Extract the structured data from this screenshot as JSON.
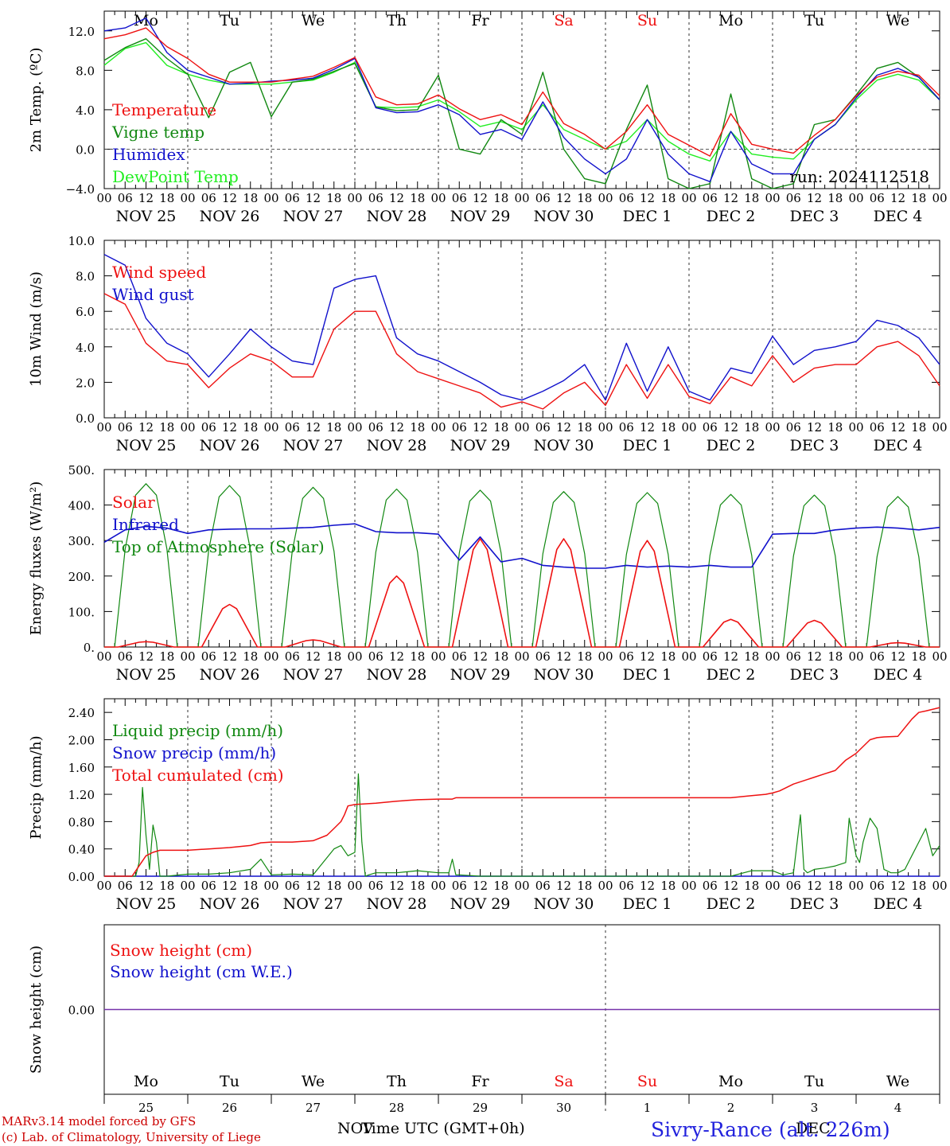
{
  "footer": {
    "model_line": "MARv3.14 model forced by GFS",
    "lab_line": "(c) Lab. of Climatology, University of Liege",
    "xaxis_title": "Time UTC (GMT+0h)",
    "nov_label": "NOV",
    "dec_label": "DEC",
    "station": "Sivry-Rance (alt. 226m)"
  },
  "colors": {
    "red": "#ee1111",
    "green": "#118811",
    "blue": "#1111cc",
    "lightgreen": "#22ee22",
    "purple": "#7733aa"
  },
  "days_top": [
    "Mo",
    "Tu",
    "We",
    "Th",
    "Fr",
    "Sa",
    "Su",
    "Mo",
    "Tu",
    "We"
  ],
  "weekend_days": [
    5,
    6
  ],
  "dates": [
    "NOV 25",
    "NOV 26",
    "NOV 27",
    "NOV 28",
    "NOV 29",
    "NOV 30",
    "DEC  1",
    "DEC  2",
    "DEC  3",
    "DEC  4"
  ],
  "hour_ticks": [
    "00",
    "06",
    "12",
    "18"
  ],
  "bottom_day_numbers": [
    "25",
    "26",
    "27",
    "28",
    "29",
    "30",
    "1",
    "2",
    "3",
    "4"
  ],
  "chart_data": [
    {
      "type": "line",
      "ylabel": "2m Temp. (ºC)",
      "ylim": [
        -4,
        14
      ],
      "yticks": [
        "12.0",
        "8.0",
        "4.0",
        "0.0",
        "−4.0"
      ],
      "ytick_values": [
        12,
        8,
        4,
        0,
        -4
      ],
      "ref_line": 0,
      "run_label": "run: 2024112518",
      "x_hours": [
        0,
        6,
        12,
        18,
        24,
        30,
        36,
        42,
        48,
        54,
        60,
        66,
        72,
        78,
        84,
        90,
        96,
        102,
        108,
        114,
        120,
        126,
        132,
        138,
        144,
        150,
        156,
        162,
        168,
        174,
        180,
        186,
        192,
        198,
        204,
        210,
        216,
        222,
        228,
        234,
        240
      ],
      "series": [
        {
          "name": "Temperature",
          "color": "red",
          "values": [
            11.2,
            11.6,
            12.3,
            10.4,
            9.2,
            7.6,
            6.8,
            6.8,
            6.8,
            7.1,
            7.4,
            8.3,
            9.3,
            5.3,
            4.5,
            4.6,
            5.5,
            4.1,
            3.0,
            3.5,
            2.5,
            5.8,
            2.6,
            1.5,
            0.0,
            1.8,
            4.5,
            1.5,
            0.4,
            -0.7,
            3.6,
            0.5,
            0.0,
            -0.4,
            1.4,
            3.0,
            5.4,
            7.3,
            7.9,
            7.5,
            5.4
          ]
        },
        {
          "name": "Vigne temp",
          "color": "green",
          "values": [
            9.0,
            10.3,
            11.2,
            9.2,
            7.6,
            3.2,
            7.8,
            8.8,
            3.3,
            6.8,
            7.1,
            7.9,
            8.7,
            4.3,
            3.9,
            4.0,
            7.5,
            0.0,
            -0.5,
            3.0,
            1.5,
            7.8,
            0.0,
            -3.0,
            -3.5,
            2.0,
            6.5,
            -3.0,
            -4.0,
            -3.5,
            5.6,
            -3.0,
            -4.0,
            -3.5,
            2.5,
            3.0,
            5.5,
            8.2,
            8.8,
            7.3,
            5.0
          ]
        },
        {
          "name": "Humidex",
          "color": "blue",
          "values": [
            12.0,
            12.3,
            13.3,
            9.8,
            8.0,
            7.3,
            6.6,
            6.7,
            6.9,
            7.0,
            7.2,
            8.1,
            9.2,
            4.2,
            3.7,
            3.8,
            4.5,
            3.5,
            1.5,
            2.0,
            1.0,
            4.8,
            1.2,
            -1.0,
            -2.5,
            -1.0,
            3.0,
            -0.5,
            -2.5,
            -3.3,
            1.8,
            -1.5,
            -2.5,
            -2.5,
            1.0,
            2.5,
            5.2,
            7.5,
            8.2,
            7.3,
            5.0
          ]
        },
        {
          "name": "DewPoint Temp",
          "color": "lightgreen",
          "values": [
            8.5,
            10.2,
            10.8,
            8.5,
            7.6,
            7.0,
            6.6,
            6.6,
            6.6,
            6.8,
            7.0,
            7.8,
            8.8,
            4.3,
            4.2,
            4.3,
            5.0,
            3.8,
            2.3,
            2.8,
            2.0,
            4.5,
            2.0,
            1.0,
            0.0,
            0.8,
            3.0,
            0.8,
            -0.5,
            -1.2,
            1.8,
            -0.5,
            -0.8,
            -1.0,
            1.0,
            2.5,
            5.0,
            7.0,
            7.6,
            7.0,
            5.0
          ]
        }
      ]
    },
    {
      "type": "line",
      "ylabel": "10m Wind (m/s)",
      "ylim": [
        0,
        10
      ],
      "yticks": [
        "10.0",
        "8.0",
        "6.0",
        "4.0",
        "2.0",
        "0.0"
      ],
      "ytick_values": [
        10,
        8,
        6,
        4,
        2,
        0
      ],
      "ref_line": 5,
      "x_hours": [
        0,
        6,
        12,
        18,
        24,
        30,
        36,
        42,
        48,
        54,
        60,
        66,
        72,
        78,
        84,
        90,
        96,
        102,
        108,
        114,
        120,
        126,
        132,
        138,
        144,
        150,
        156,
        162,
        168,
        174,
        180,
        186,
        192,
        198,
        204,
        210,
        216,
        222,
        228,
        234,
        240
      ],
      "series": [
        {
          "name": "Wind speed",
          "color": "red",
          "values": [
            7.0,
            6.4,
            4.2,
            3.2,
            3.0,
            1.7,
            2.8,
            3.6,
            3.2,
            2.3,
            2.3,
            5.0,
            6.0,
            6.0,
            3.6,
            2.6,
            2.2,
            1.8,
            1.4,
            0.6,
            0.9,
            0.5,
            1.4,
            2.0,
            0.7,
            3.0,
            1.1,
            3.0,
            1.2,
            0.8,
            2.3,
            1.8,
            3.5,
            2.0,
            2.8,
            3.0,
            3.0,
            4.0,
            4.3,
            3.5,
            1.8
          ]
        },
        {
          "name": "Wind gust",
          "color": "blue",
          "values": [
            9.2,
            8.6,
            5.6,
            4.2,
            3.6,
            2.3,
            3.6,
            5.0,
            4.0,
            3.2,
            3.0,
            7.3,
            7.8,
            8.0,
            4.5,
            3.6,
            3.2,
            2.6,
            2.0,
            1.3,
            1.0,
            1.5,
            2.1,
            3.0,
            1.0,
            4.2,
            1.5,
            4.0,
            1.5,
            1.0,
            2.8,
            2.5,
            4.6,
            3.0,
            3.8,
            4.0,
            4.3,
            5.5,
            5.2,
            4.5,
            3.0
          ]
        }
      ]
    },
    {
      "type": "line",
      "ylabel": "Energy fluxes (W/m²)",
      "ylim": [
        0,
        500
      ],
      "yticks": [
        "500.",
        "400.",
        "300.",
        "200.",
        "100.",
        "0."
      ],
      "ytick_values": [
        500,
        400,
        300,
        200,
        100,
        0
      ],
      "peak_hours": [
        12,
        36,
        60,
        84,
        108,
        132,
        156,
        180,
        204,
        228
      ],
      "toa_peaks": [
        460,
        455,
        450,
        445,
        442,
        438,
        435,
        430,
        428,
        424
      ],
      "solar_peaks": [
        15,
        120,
        20,
        200,
        305,
        305,
        300,
        78,
        75,
        12
      ],
      "infrared": {
        "x_hours": [
          0,
          6,
          12,
          18,
          24,
          30,
          36,
          42,
          48,
          54,
          60,
          66,
          72,
          78,
          84,
          90,
          96,
          102,
          108,
          114,
          120,
          126,
          132,
          138,
          144,
          150,
          156,
          162,
          168,
          174,
          180,
          186,
          192,
          198,
          204,
          210,
          216,
          222,
          228,
          234,
          240
        ],
        "values": [
          295,
          330,
          340,
          335,
          320,
          330,
          332,
          333,
          333,
          335,
          337,
          343,
          347,
          325,
          322,
          322,
          318,
          245,
          310,
          240,
          250,
          230,
          225,
          222,
          222,
          230,
          225,
          228,
          225,
          230,
          225,
          225,
          318,
          320,
          320,
          330,
          335,
          338,
          335,
          330,
          337
        ]
      },
      "series": [
        {
          "name": "Solar",
          "color": "red"
        },
        {
          "name": "Infrared",
          "color": "blue"
        },
        {
          "name": "Top of Atmosphere (Solar)",
          "color": "green"
        }
      ]
    },
    {
      "type": "line",
      "ylabel": "Precip (mm/h)",
      "ylim": [
        0,
        2.6
      ],
      "yticks": [
        "2.40",
        "2.00",
        "1.60",
        "1.20",
        "0.80",
        "0.40",
        "0.00"
      ],
      "ytick_values": [
        2.4,
        2.0,
        1.6,
        1.2,
        0.8,
        0.4,
        0.0
      ],
      "liquid": {
        "x_hours": [
          0,
          6,
          9,
          10,
          11,
          12,
          13,
          14,
          15,
          16,
          18,
          24,
          30,
          36,
          42,
          45,
          48,
          54,
          60,
          66,
          68,
          70,
          72,
          73,
          74,
          75,
          76,
          78,
          84,
          90,
          96,
          99,
          100,
          101,
          102,
          108,
          120,
          144,
          168,
          180,
          186,
          192,
          195,
          198,
          200,
          201,
          202,
          204,
          207,
          210,
          213,
          214,
          216,
          217,
          218,
          220,
          222,
          224,
          226,
          228,
          230,
          232,
          234,
          236,
          238,
          240
        ],
        "values": [
          0,
          0,
          0,
          0.2,
          1.3,
          0.6,
          0.1,
          0.75,
          0.5,
          0,
          0,
          0.03,
          0.03,
          0.05,
          0.1,
          0.25,
          0.02,
          0.03,
          0.02,
          0.4,
          0.45,
          0.3,
          0.35,
          1.5,
          0.5,
          0,
          0.02,
          0.05,
          0.05,
          0.08,
          0.05,
          0.05,
          0.25,
          0.02,
          0.02,
          0,
          0,
          0,
          0,
          0,
          0.08,
          0.08,
          0.02,
          0.05,
          0.9,
          0.1,
          0.05,
          0.1,
          0.12,
          0.15,
          0.2,
          0.85,
          0.3,
          0.2,
          0.5,
          0.85,
          0.7,
          0.1,
          0.05,
          0.05,
          0.1,
          0.3,
          0.5,
          0.7,
          0.3,
          0.45
        ]
      },
      "cumulated": {
        "x_hours": [
          0,
          8,
          10,
          12,
          14,
          16,
          18,
          24,
          30,
          36,
          42,
          45,
          48,
          54,
          60,
          64,
          66,
          68,
          69,
          70,
          72,
          78,
          84,
          90,
          96,
          100,
          101,
          102,
          108,
          120,
          144,
          168,
          180,
          186,
          190,
          192,
          194,
          198,
          204,
          207,
          210,
          213,
          216,
          218,
          220,
          222,
          224,
          228,
          232,
          234,
          236,
          240
        ],
        "values": [
          0,
          0,
          0.15,
          0.3,
          0.35,
          0.38,
          0.38,
          0.38,
          0.4,
          0.42,
          0.45,
          0.49,
          0.5,
          0.5,
          0.52,
          0.6,
          0.7,
          0.8,
          0.9,
          1.03,
          1.05,
          1.07,
          1.1,
          1.12,
          1.13,
          1.13,
          1.15,
          1.15,
          1.15,
          1.15,
          1.15,
          1.15,
          1.15,
          1.18,
          1.2,
          1.22,
          1.25,
          1.35,
          1.45,
          1.5,
          1.55,
          1.7,
          1.8,
          1.9,
          2.0,
          2.03,
          2.04,
          2.05,
          2.3,
          2.4,
          2.42,
          2.47
        ]
      },
      "series": [
        {
          "name": "Liquid precip (mm/h)",
          "color": "green"
        },
        {
          "name": "Snow precip (mm/h)",
          "color": "blue"
        },
        {
          "name": "Total cumulated (cm)",
          "color": "red"
        }
      ]
    },
    {
      "type": "line",
      "ylabel": "Snow height (cm)",
      "ylim": [
        -1,
        1
      ],
      "yticks": [
        "0.00"
      ],
      "ytick_values": [
        0
      ],
      "series": [
        {
          "name": "Snow height (cm)",
          "color": "red",
          "values": [
            0,
            0
          ]
        },
        {
          "name": "Snow height (cm W.E.)",
          "color": "blue",
          "values": [
            0,
            0
          ]
        }
      ]
    }
  ]
}
